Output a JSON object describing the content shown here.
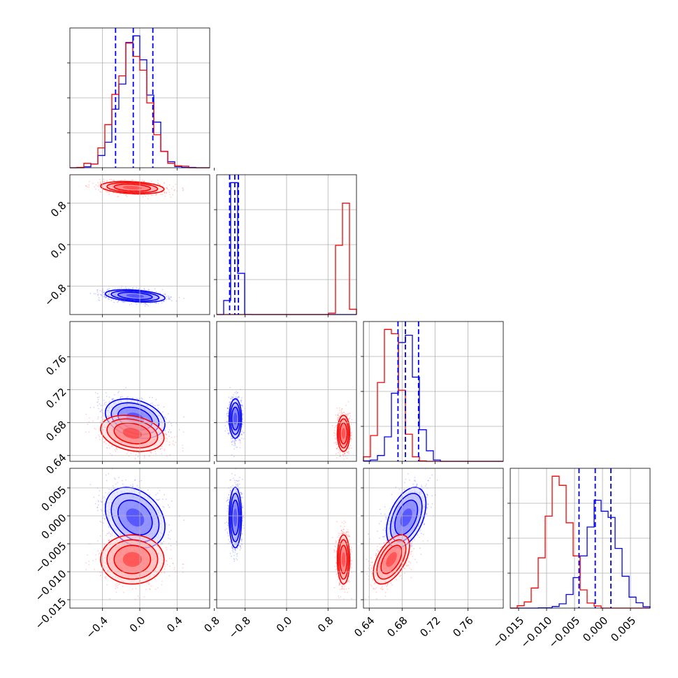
{
  "chart_data": {
    "type": "corner",
    "title": "",
    "params": [
      {
        "range": [
          -0.75,
          0.75
        ],
        "ticks": [
          -0.4,
          0.0,
          0.4,
          0.8
        ],
        "tick_labels": [
          "−0.4",
          "0.0",
          "0.4",
          "0.8"
        ]
      },
      {
        "range": [
          -1.35,
          1.35
        ],
        "ticks": [
          -0.8,
          0.0,
          0.8
        ],
        "tick_labels": [
          "−0.8",
          "0.0",
          "0.8"
        ]
      },
      {
        "range": [
          0.633,
          0.803
        ],
        "ticks": [
          0.64,
          0.68,
          0.72,
          0.76
        ],
        "tick_labels": [
          "0.64",
          "0.68",
          "0.72",
          "0.76"
        ]
      },
      {
        "range": [
          -0.0165,
          0.0085
        ],
        "ticks": [
          -0.015,
          -0.01,
          -0.005,
          0.0,
          0.005
        ],
        "tick_labels": [
          "−0.015",
          "−0.010",
          "−0.005",
          "0.000",
          "0.005"
        ]
      }
    ],
    "series": [
      {
        "color": "#0000ff",
        "mean": [
          -0.05,
          -0.99,
          0.685,
          -0.0003
        ],
        "std": [
          0.16,
          0.06,
          0.012,
          0.0027
        ],
        "corr": [
          [
            1,
            -0.35,
            -0.3,
            -0.3
          ],
          [
            -0.35,
            1,
            0.0,
            0.0
          ],
          [
            -0.3,
            0.0,
            1,
            0.45
          ],
          [
            -0.3,
            0.0,
            0.45,
            1
          ]
        ],
        "quantiles": [
          [
            -0.26,
            -0.07,
            0.14
          ],
          [
            -1.1,
            -1.0,
            -0.93
          ],
          [
            0.675,
            0.684,
            0.7
          ],
          [
            -0.0042,
            -0.0013,
            0.0015
          ]
        ]
      },
      {
        "color": "#ff0000",
        "mean": [
          -0.08,
          1.1,
          0.667,
          -0.0078
        ],
        "std": [
          0.17,
          0.06,
          0.011,
          0.0022
        ],
        "corr": [
          [
            1,
            -0.25,
            -0.25,
            0.0
          ],
          [
            -0.25,
            1,
            0.0,
            0.0
          ],
          [
            -0.25,
            0.0,
            1,
            0.55
          ],
          [
            0.0,
            0.0,
            0.55,
            1
          ]
        ],
        "quantiles": []
      }
    ],
    "quantile_line_color": "#0000ff",
    "grid": true,
    "y_tick_labels_on_first_column": true,
    "x_tick_labels_on_bottom_row": true
  }
}
